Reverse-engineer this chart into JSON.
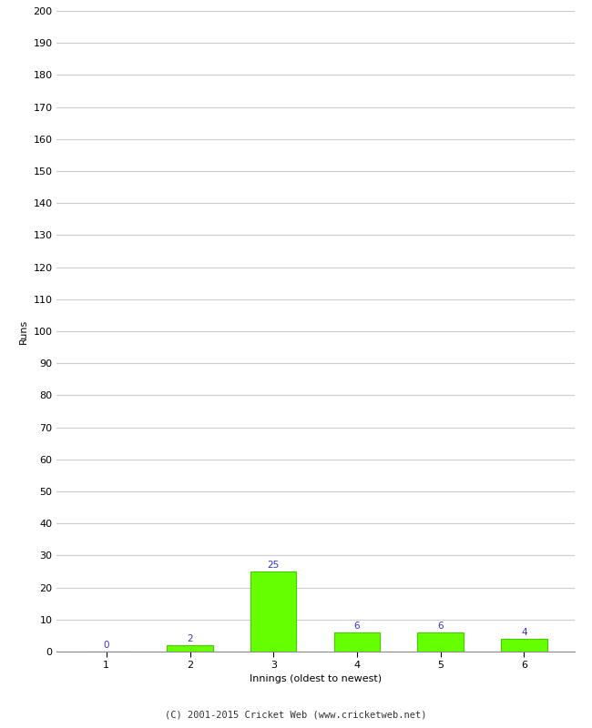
{
  "categories": [
    1,
    2,
    3,
    4,
    5,
    6
  ],
  "values": [
    0,
    2,
    25,
    6,
    6,
    4
  ],
  "bar_color": "#66ff00",
  "bar_edge_color": "#44cc00",
  "label_color": "#3333cc",
  "xlabel": "Innings (oldest to newest)",
  "ylabel": "Runs",
  "ylim": [
    0,
    200
  ],
  "yticks": [
    0,
    10,
    20,
    30,
    40,
    50,
    60,
    70,
    80,
    90,
    100,
    110,
    120,
    130,
    140,
    150,
    160,
    170,
    180,
    190,
    200
  ],
  "footer": "(C) 2001-2015 Cricket Web (www.cricketweb.net)",
  "background_color": "#ffffff",
  "grid_color": "#cccccc",
  "label_fontsize": 7.5,
  "axis_label_fontsize": 8,
  "tick_fontsize": 8,
  "footer_fontsize": 7.5,
  "bar_width": 0.55
}
